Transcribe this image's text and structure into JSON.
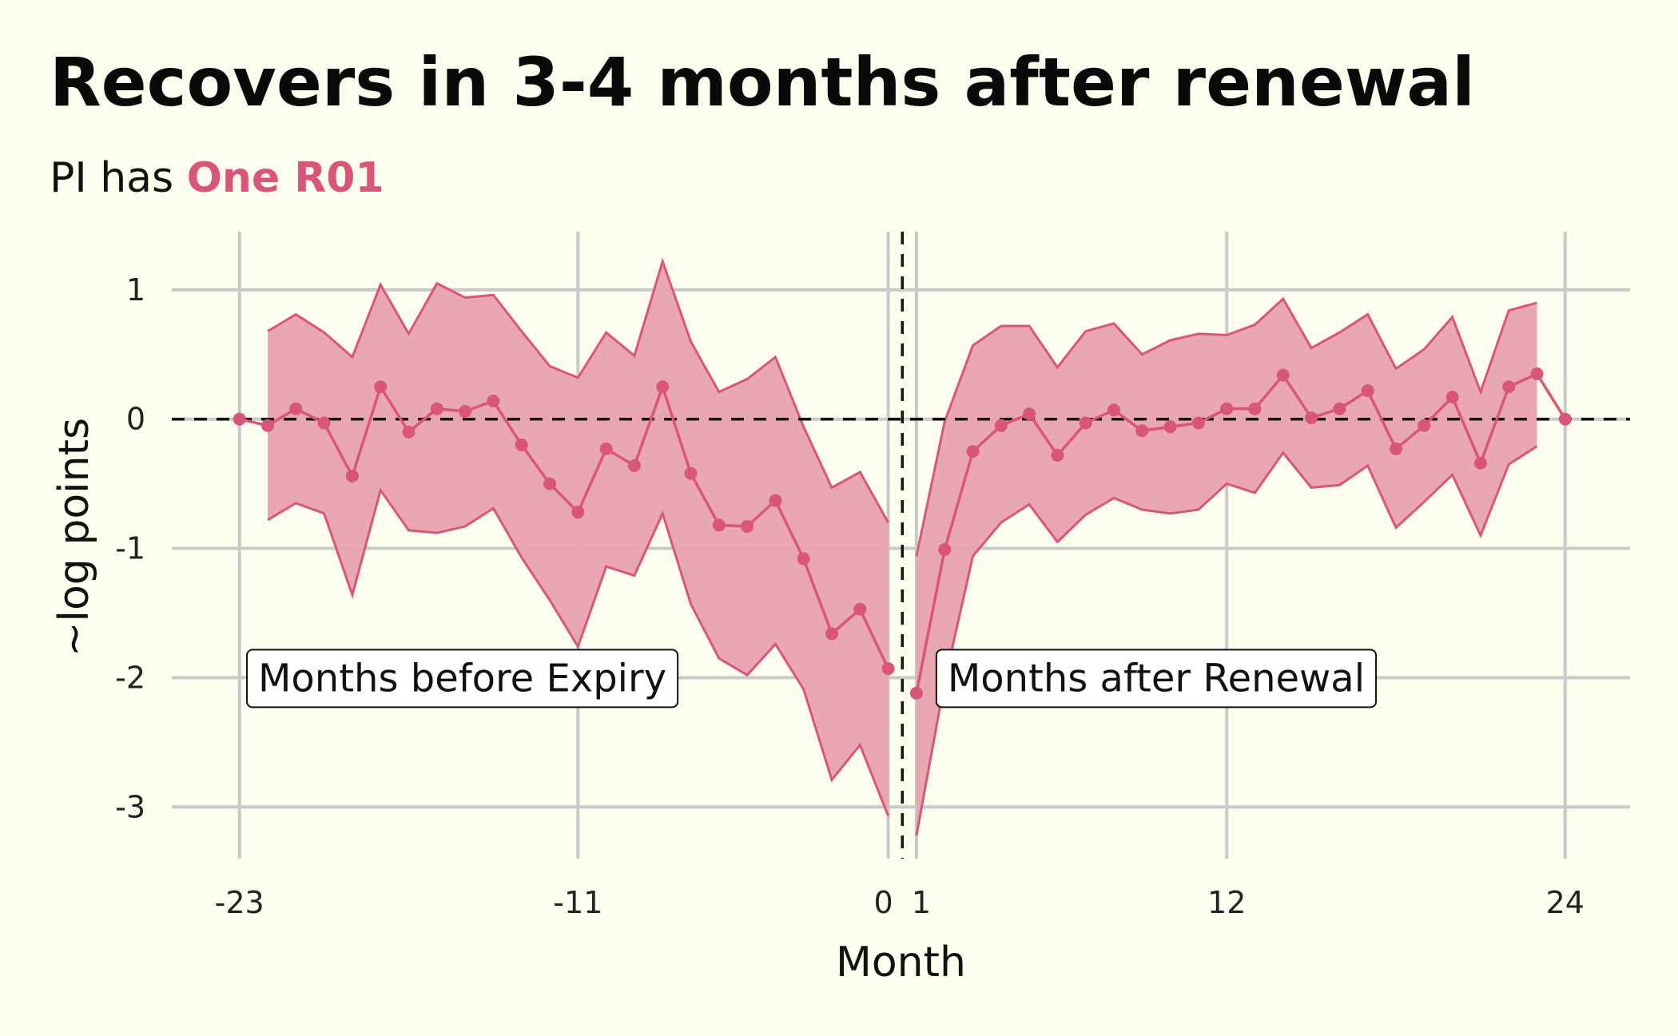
{
  "title": "Recovers in 3-4 months after renewal",
  "subtitle": {
    "prefix": "PI has ",
    "highlight": "One R01"
  },
  "colors": {
    "background": "#fcfdec",
    "series": "#d9557a",
    "band": "#e8a3ae",
    "grid": "#c9c9c9"
  },
  "chart_data": {
    "type": "line",
    "xlabel": "Month",
    "ylabel": "~log points",
    "xlim": [
      -25.4,
      26.3
    ],
    "ylim": [
      -3.4,
      1.45
    ],
    "x_ticks": [
      -23,
      -11,
      0,
      1,
      12,
      24
    ],
    "x_tick_labels": [
      "-23",
      "-11",
      "0",
      "1",
      "12",
      "24"
    ],
    "y_ticks": [
      1,
      0,
      -1,
      -2,
      -3
    ],
    "y_tick_labels": [
      "1",
      "0",
      "-1",
      "-2",
      "-3"
    ],
    "grid": true,
    "reference_lines": {
      "horizontal": 0,
      "vertical": 0.5
    },
    "annotations": [
      "Months before Expiry",
      "Months after Renewal"
    ],
    "series": [
      {
        "segment": "before",
        "x": [
          -23,
          -22,
          -21,
          -20,
          -19,
          -18,
          -17,
          -16,
          -15,
          -14,
          -13,
          -12,
          -11,
          -10,
          -9,
          -8,
          -7,
          -6,
          -5,
          -4,
          -3,
          -2,
          -1,
          0
        ],
        "y": [
          0.0,
          -0.05,
          0.08,
          -0.03,
          -0.44,
          0.25,
          -0.1,
          0.08,
          0.06,
          0.14,
          -0.2,
          -0.5,
          -0.72,
          -0.23,
          -0.36,
          0.25,
          -0.42,
          -0.82,
          -0.83,
          -0.63,
          -1.08,
          -1.66,
          -1.47,
          -1.93
        ],
        "lower": [
          null,
          -0.78,
          -0.65,
          -0.73,
          -1.36,
          -0.55,
          -0.86,
          -0.88,
          -0.83,
          -0.69,
          -1.07,
          -1.4,
          -1.76,
          -1.14,
          -1.21,
          -0.73,
          -1.43,
          -1.85,
          -1.98,
          -1.74,
          -2.09,
          -2.79,
          -2.52,
          -3.07
        ],
        "upper": [
          null,
          0.68,
          0.81,
          0.67,
          0.48,
          1.04,
          0.66,
          1.05,
          0.94,
          0.96,
          0.68,
          0.41,
          0.32,
          0.67,
          0.49,
          1.22,
          0.6,
          0.21,
          0.31,
          0.48,
          -0.06,
          -0.53,
          -0.41,
          -0.8
        ]
      },
      {
        "segment": "after",
        "x": [
          1,
          2,
          3,
          4,
          5,
          6,
          7,
          8,
          9,
          10,
          11,
          12,
          13,
          14,
          15,
          16,
          17,
          18,
          19,
          20,
          21,
          22,
          23,
          24
        ],
        "y": [
          -2.12,
          -1.01,
          -0.25,
          -0.05,
          0.04,
          -0.28,
          -0.03,
          0.07,
          -0.09,
          -0.06,
          -0.03,
          0.08,
          0.08,
          0.34,
          0.01,
          0.08,
          0.22,
          -0.23,
          -0.05,
          0.17,
          -0.34,
          0.25,
          0.35,
          0.0
        ],
        "lower": [
          -3.22,
          -2.03,
          -1.06,
          -0.8,
          -0.66,
          -0.95,
          -0.74,
          -0.61,
          -0.7,
          -0.73,
          -0.7,
          -0.5,
          -0.57,
          -0.26,
          -0.53,
          -0.51,
          -0.36,
          -0.84,
          -0.64,
          -0.43,
          -0.9,
          -0.35,
          -0.21,
          null
        ],
        "upper": [
          -1.06,
          -0.02,
          0.57,
          0.72,
          0.72,
          0.4,
          0.68,
          0.74,
          0.5,
          0.61,
          0.66,
          0.65,
          0.73,
          0.93,
          0.55,
          0.67,
          0.81,
          0.39,
          0.54,
          0.79,
          0.21,
          0.84,
          0.9,
          null
        ]
      }
    ]
  }
}
